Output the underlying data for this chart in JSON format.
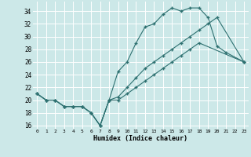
{
  "xlabel": "Humidex (Indice chaleur)",
  "bg_color": "#cce8e8",
  "grid_color": "#ffffff",
  "line_color": "#2d7070",
  "xlim": [
    -0.5,
    23.5
  ],
  "ylim": [
    15.5,
    35.5
  ],
  "xticks": [
    0,
    1,
    2,
    3,
    4,
    5,
    6,
    7,
    8,
    9,
    10,
    11,
    12,
    13,
    14,
    15,
    16,
    17,
    18,
    19,
    20,
    21,
    22,
    23
  ],
  "yticks": [
    16,
    18,
    20,
    22,
    24,
    26,
    28,
    30,
    32,
    34
  ],
  "line1_x": [
    0,
    1,
    2,
    3,
    4,
    5,
    6,
    7,
    8,
    9,
    10,
    11,
    12,
    13,
    14,
    15,
    16,
    17,
    18,
    19,
    20,
    21,
    23
  ],
  "line1_y": [
    21,
    20,
    20,
    19,
    19,
    19,
    18,
    16,
    20,
    24.5,
    26,
    29,
    31.5,
    32,
    33.5,
    34.5,
    34,
    34.5,
    34.5,
    33,
    28.5,
    27.5,
    26
  ],
  "line2_x": [
    0,
    1,
    2,
    3,
    4,
    5,
    6,
    7,
    8,
    9,
    10,
    11,
    12,
    13,
    14,
    15,
    16,
    17,
    18,
    19,
    20,
    23
  ],
  "line2_y": [
    21,
    20,
    20,
    19,
    19,
    19,
    18,
    16,
    20,
    20.5,
    22,
    23.5,
    25,
    26,
    27,
    28,
    29,
    30,
    31,
    32,
    33,
    26
  ],
  "line3_x": [
    0,
    1,
    2,
    3,
    4,
    5,
    6,
    7,
    8,
    9,
    10,
    11,
    12,
    13,
    14,
    15,
    16,
    17,
    18,
    23
  ],
  "line3_y": [
    21,
    20,
    20,
    19,
    19,
    19,
    18,
    16,
    20,
    20,
    21,
    22,
    23,
    24,
    25,
    26,
    27,
    28,
    29,
    26
  ]
}
